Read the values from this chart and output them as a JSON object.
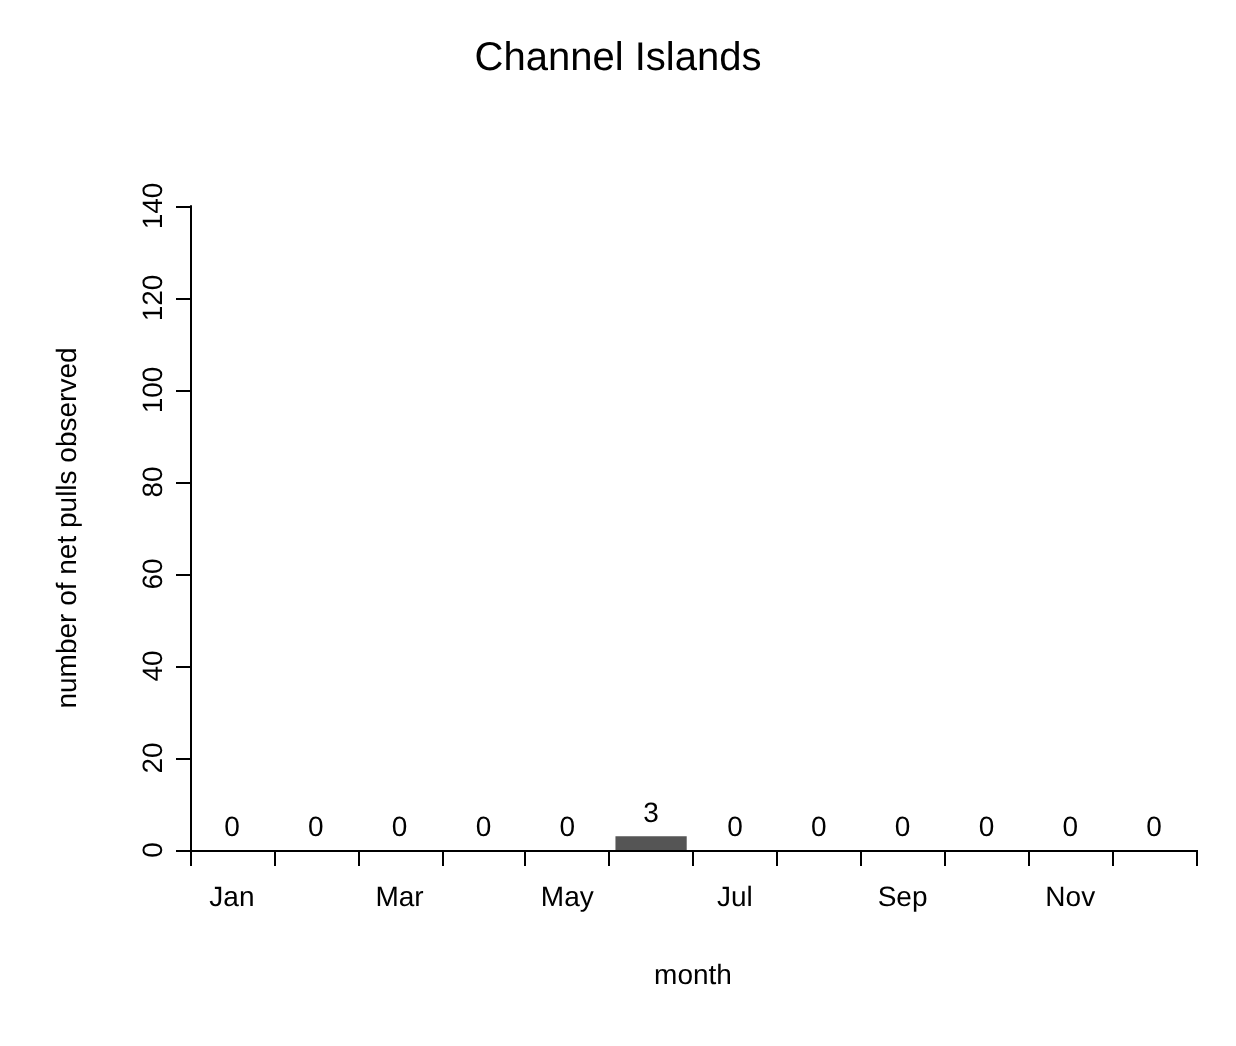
{
  "chart_data": {
    "type": "bar",
    "title": "Channel Islands",
    "xlabel": "month",
    "ylabel": "number of net pulls observed",
    "categories": [
      "Jan",
      null,
      "Mar",
      null,
      "May",
      null,
      "Jul",
      null,
      "Sep",
      null,
      "Nov",
      null
    ],
    "values": [
      0,
      0,
      0,
      0,
      0,
      3,
      0,
      0,
      0,
      0,
      0,
      0
    ],
    "color": "#555555",
    "ylim": [
      0,
      140
    ],
    "yticks": [
      0,
      20,
      40,
      60,
      80,
      100,
      120,
      140
    ],
    "data_labels": true
  }
}
